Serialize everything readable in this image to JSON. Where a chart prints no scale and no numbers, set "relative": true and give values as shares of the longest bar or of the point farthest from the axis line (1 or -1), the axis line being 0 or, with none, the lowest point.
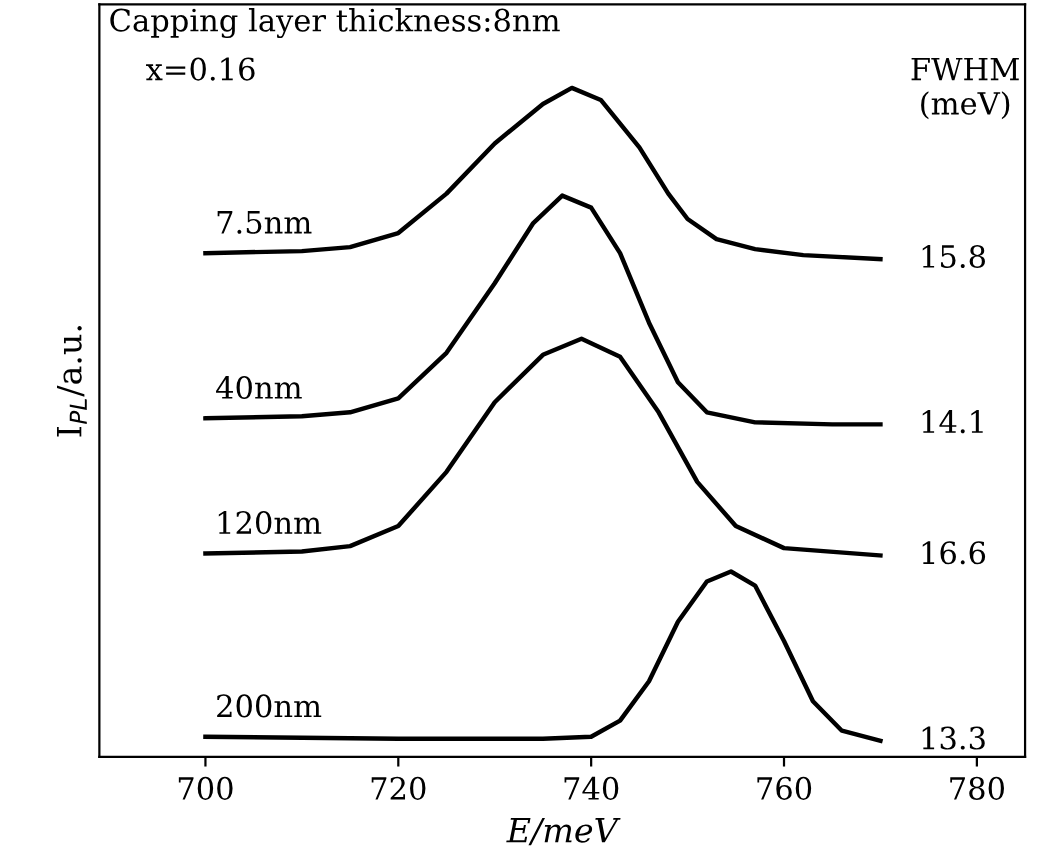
{
  "chart_data": {
    "type": "line",
    "relative": true,
    "xlabel": "E/meV",
    "ylabel": "I$_{PL}$/a.u.",
    "xlim": [
      689,
      785
    ],
    "xticks": [
      700,
      720,
      740,
      760,
      780
    ],
    "legend": false,
    "grid": false,
    "marker": "none",
    "line_style": "solid",
    "annotations": [
      "Capping layer thickness:8nm",
      "x=0.16",
      "FWHM\n(meV)",
      "15.8",
      "14.1",
      "16.6",
      "13.3"
    ],
    "series": [
      {
        "name": "7.5nm",
        "color": "#000000",
        "x": [
          700,
          710,
          715,
          720,
          725,
          730,
          735,
          738,
          741,
          745,
          748,
          750,
          753,
          757,
          762,
          770
        ],
        "values": [
          0.753,
          0.756,
          0.762,
          0.783,
          0.842,
          0.917,
          0.976,
          1.0,
          0.982,
          0.911,
          0.842,
          0.804,
          0.774,
          0.759,
          0.75,
          0.744
        ]
      },
      {
        "name": "40nm",
        "color": "#000000",
        "x": [
          700,
          710,
          715,
          720,
          725,
          730,
          734,
          737,
          740,
          743,
          746,
          749,
          752,
          757,
          765,
          770
        ],
        "values": [
          0.506,
          0.509,
          0.515,
          0.536,
          0.604,
          0.708,
          0.798,
          0.839,
          0.821,
          0.753,
          0.649,
          0.56,
          0.515,
          0.5,
          0.497,
          0.497
        ]
      },
      {
        "name": "120nm",
        "color": "#000000",
        "x": [
          700,
          710,
          715,
          720,
          725,
          730,
          735,
          739,
          743,
          747,
          751,
          755,
          760,
          770
        ],
        "values": [
          0.304,
          0.307,
          0.315,
          0.345,
          0.426,
          0.53,
          0.601,
          0.625,
          0.598,
          0.515,
          0.411,
          0.345,
          0.312,
          0.301
        ]
      },
      {
        "name": "200nm",
        "color": "#000000",
        "x": [
          700,
          720,
          735,
          740,
          743,
          746,
          749,
          752,
          754.5,
          757,
          760,
          763,
          766,
          770
        ],
        "values": [
          0.03,
          0.027,
          0.027,
          0.03,
          0.054,
          0.113,
          0.202,
          0.262,
          0.277,
          0.256,
          0.173,
          0.083,
          0.039,
          0.024
        ]
      }
    ]
  }
}
